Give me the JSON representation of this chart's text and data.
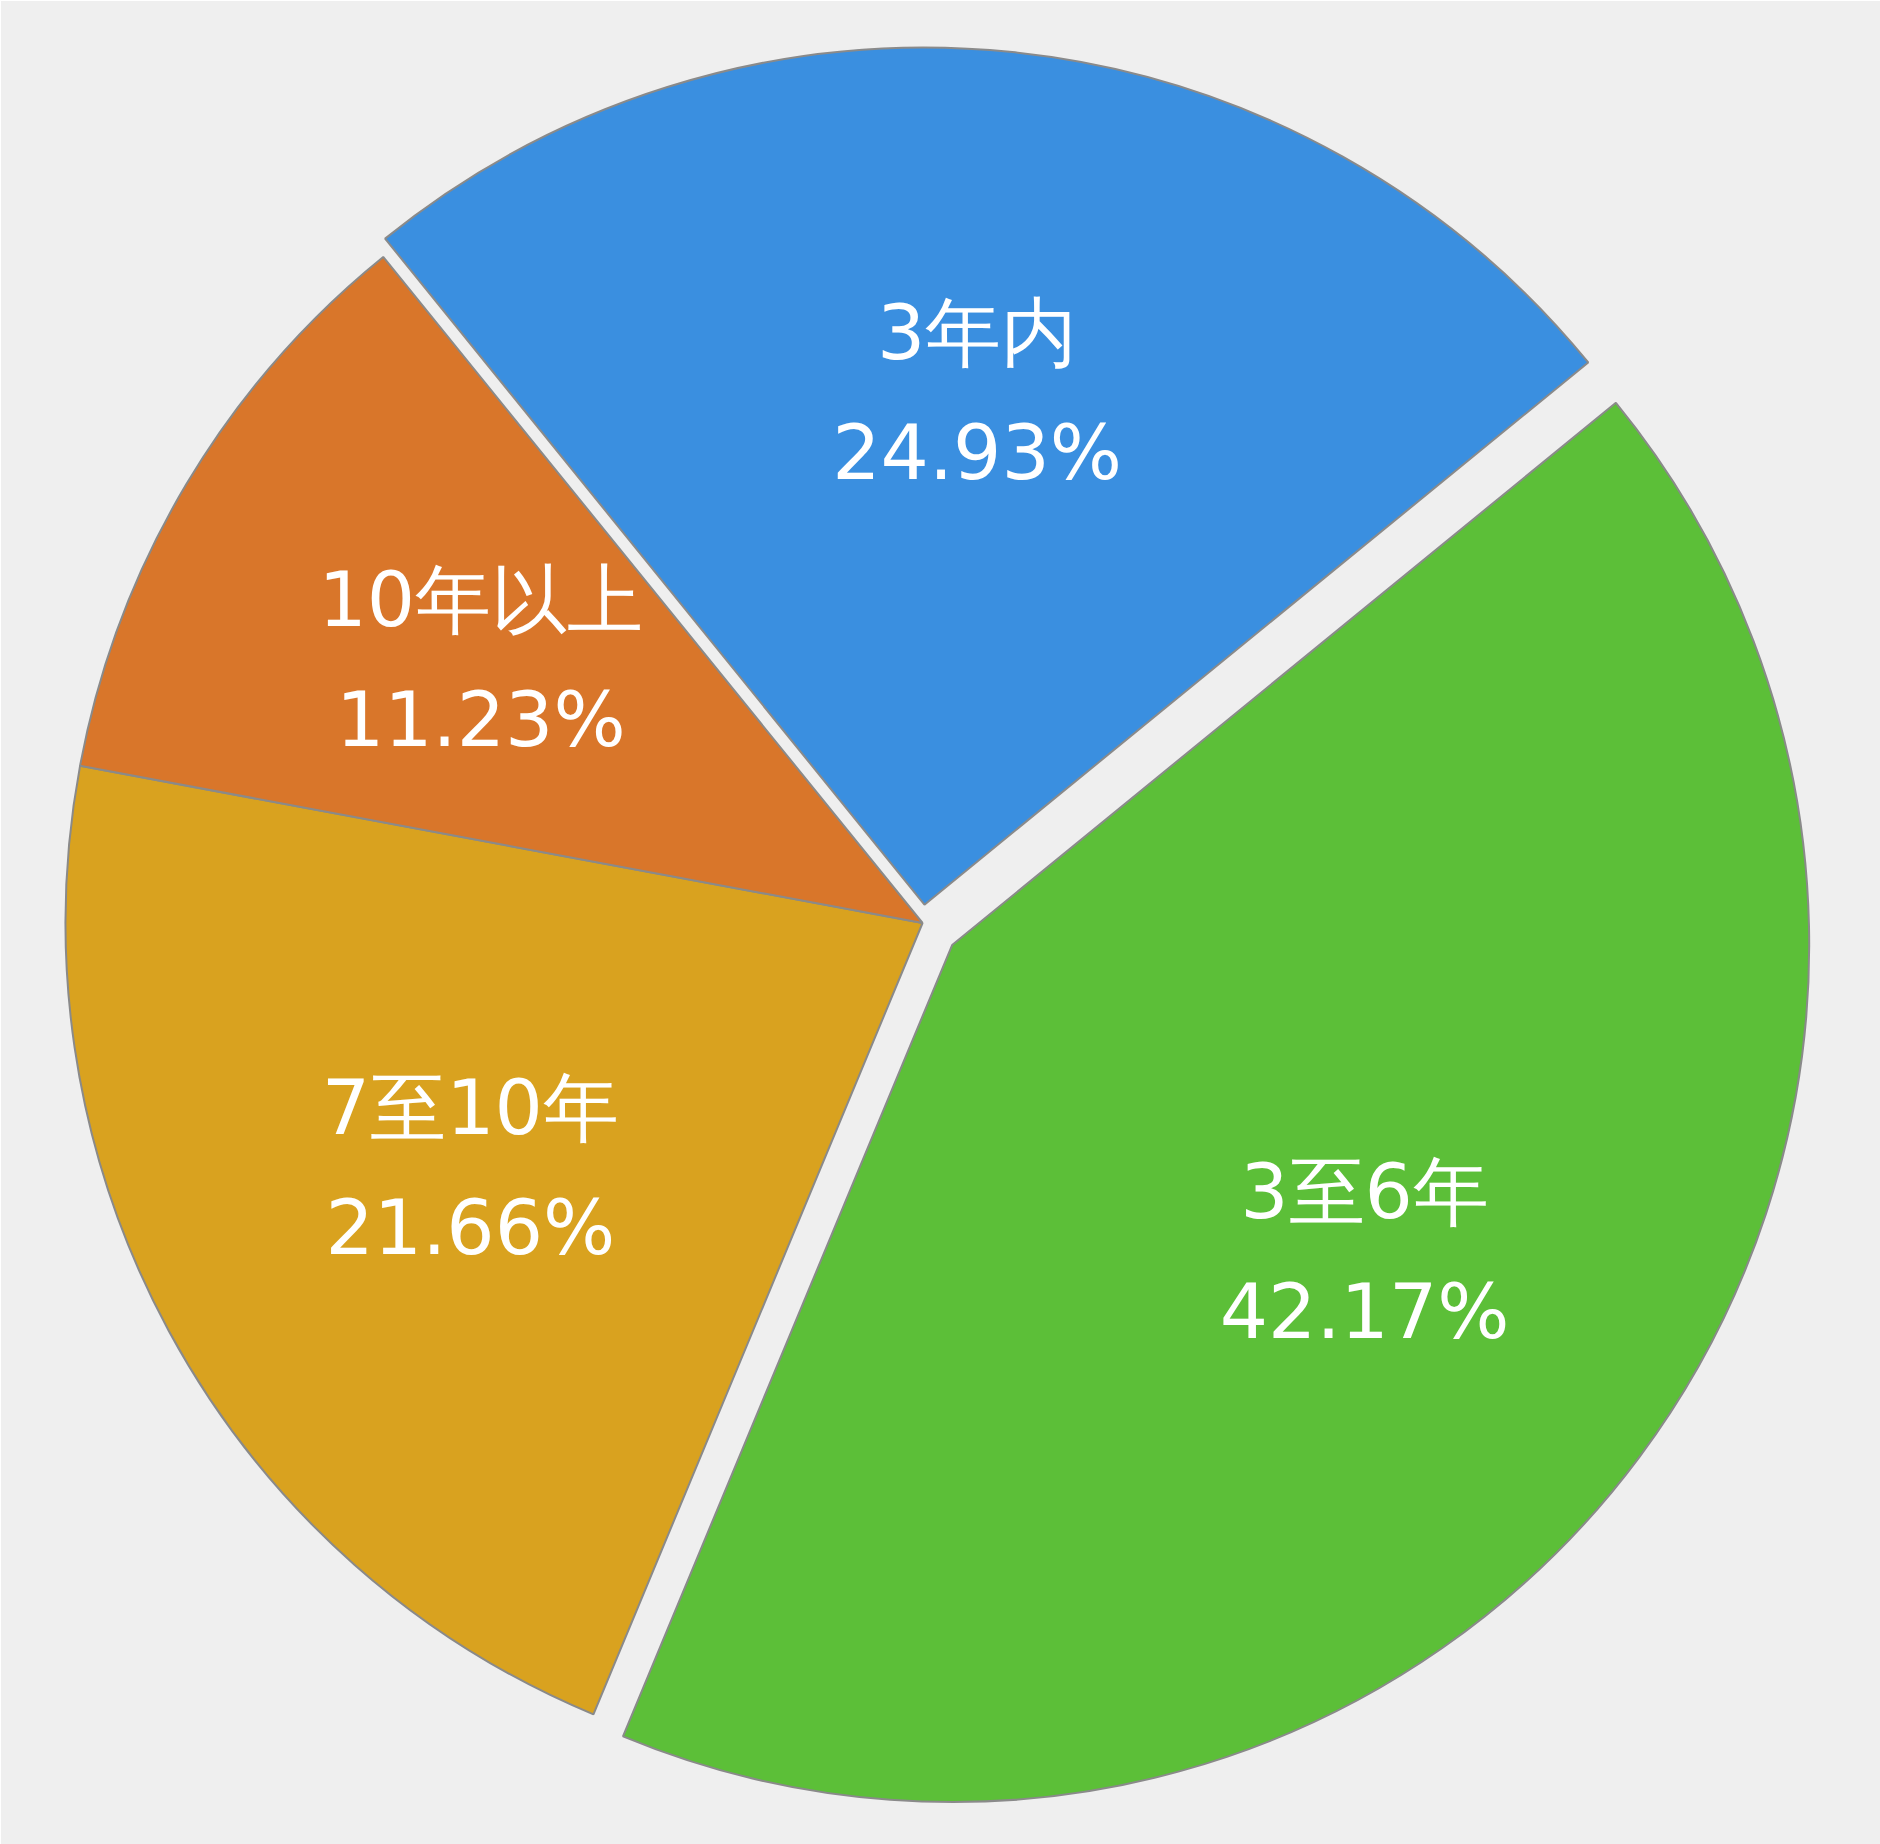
{
  "chart_data": {
    "type": "pie",
    "categories": [
      "3年内",
      "3至6年",
      "7至10年",
      "10年以上"
    ],
    "values": [
      24.93,
      42.17,
      21.66,
      11.23
    ],
    "value_labels": [
      "24.93%",
      "42.17%",
      "21.66%",
      "11.23%"
    ],
    "colors": [
      "#3a8fe0",
      "#5cbf38",
      "#d9a21f",
      "#d9762a"
    ]
  }
}
